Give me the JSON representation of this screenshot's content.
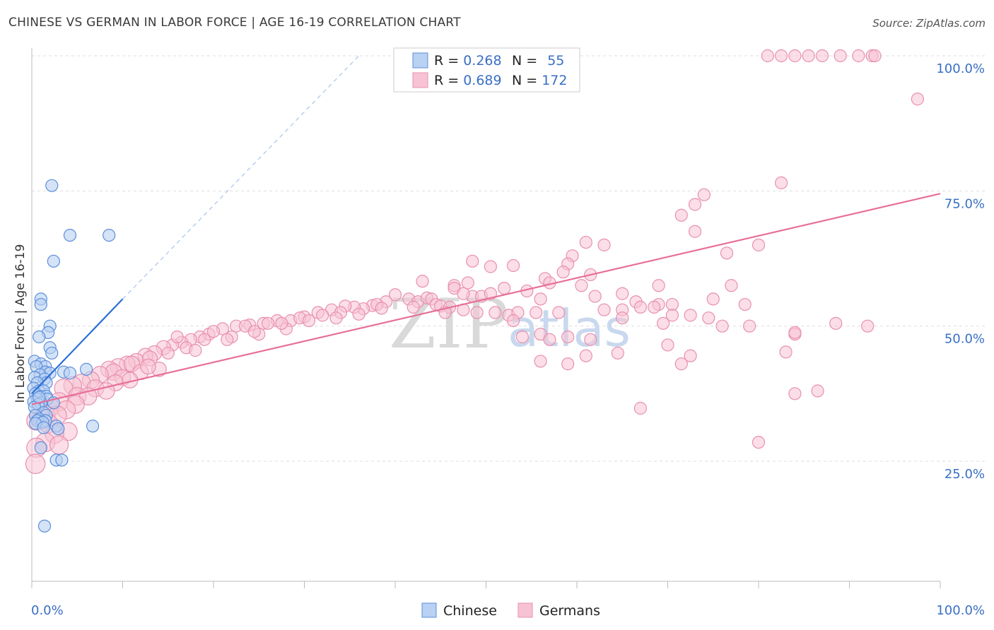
{
  "title": "CHINESE VS GERMAN IN LABOR FORCE | AGE 16-19 CORRELATION CHART",
  "source": "Source: ZipAtlas.com",
  "watermark": {
    "zip": "ZIP",
    "atlas": "atlas"
  },
  "colors": {
    "chinese_fill": "#b9d1f2",
    "chinese_stroke": "#5b8fdb",
    "chinese_line": "#2b6fd6",
    "german_fill": "#f7c3d4",
    "german_stroke": "#e890ae",
    "german_line": "#e86f98",
    "axis_text": "#3a6fc4",
    "grid": "#dddddd"
  },
  "legend": {
    "rows": [
      {
        "r_label": "R = ",
        "r_value": "0.268",
        "n_label": "N = ",
        "n_value": "55"
      },
      {
        "r_label": "R = ",
        "r_value": "0.689",
        "n_label": "N = ",
        "n_value": "172"
      }
    ]
  },
  "bottom_legend": [
    "Chinese",
    "Germans"
  ],
  "chart_data": {
    "type": "scatter",
    "title": "CHINESE VS GERMAN IN LABOR FORCE | AGE 16-19 CORRELATION CHART",
    "xlabel": "",
    "ylabel": "In Labor Force | Age 16-19",
    "xlim": [
      0,
      100
    ],
    "ylim": [
      0,
      102
    ],
    "x_tick_labels": [
      "0.0%",
      "100.0%"
    ],
    "y_ticks": [
      25,
      50,
      75,
      100
    ],
    "y_tick_labels": [
      "25.0%",
      "50.0%",
      "75.0%",
      "100.0%"
    ],
    "grid": true,
    "legend_position": "top-center",
    "series": [
      {
        "name": "Chinese",
        "R": 0.268,
        "N": 55,
        "trend": {
          "x": [
            0,
            10
          ],
          "y": [
            37.5,
            55
          ],
          "dashed_to": [
            36,
            100
          ]
        },
        "points": [
          [
            2.2,
            76
          ],
          [
            4.2,
            66.8
          ],
          [
            8.5,
            66.8
          ],
          [
            2.4,
            62
          ],
          [
            1.0,
            55
          ],
          [
            1.0,
            54
          ],
          [
            2.0,
            50
          ],
          [
            1.8,
            48.8
          ],
          [
            0.8,
            48
          ],
          [
            2.0,
            46
          ],
          [
            2.2,
            45
          ],
          [
            0.3,
            43.5
          ],
          [
            1.0,
            43
          ],
          [
            1.5,
            42.5
          ],
          [
            0.5,
            42.5
          ],
          [
            6.0,
            42
          ],
          [
            3.5,
            41.5
          ],
          [
            4.2,
            41.3
          ],
          [
            1.5,
            41.5
          ],
          [
            2.0,
            41.3
          ],
          [
            0.9,
            41
          ],
          [
            0.3,
            40.5
          ],
          [
            1.4,
            40.2
          ],
          [
            1.6,
            39.5
          ],
          [
            0.6,
            39.5
          ],
          [
            0.2,
            38.5
          ],
          [
            0.8,
            38
          ],
          [
            1.3,
            38
          ],
          [
            0.4,
            37.5
          ],
          [
            1.0,
            37
          ],
          [
            1.6,
            37
          ],
          [
            1.7,
            36.5
          ],
          [
            0.6,
            36.5
          ],
          [
            0.2,
            36
          ],
          [
            1.0,
            35.8
          ],
          [
            2.4,
            35.8
          ],
          [
            0.7,
            35.5
          ],
          [
            0.3,
            35
          ],
          [
            1.3,
            34
          ],
          [
            0.4,
            33.5
          ],
          [
            1.6,
            33.5
          ],
          [
            0.8,
            32.8
          ],
          [
            1.5,
            32.5
          ],
          [
            0.6,
            32.5
          ],
          [
            1.2,
            32.2
          ],
          [
            0.4,
            32
          ],
          [
            2.7,
            31.5
          ],
          [
            6.7,
            31.5
          ],
          [
            1.3,
            31.2
          ],
          [
            2.9,
            31
          ],
          [
            1.0,
            27.5
          ],
          [
            2.7,
            25.2
          ],
          [
            3.3,
            25.2
          ],
          [
            1.4,
            13
          ],
          [
            0.8,
            36.8
          ]
        ]
      },
      {
        "name": "Germans",
        "R": 0.689,
        "N": 172,
        "trend": {
          "x": [
            0,
            100
          ],
          "y": [
            35.5,
            74.5
          ]
        },
        "points": [
          [
            81,
            100
          ],
          [
            82.5,
            100
          ],
          [
            84,
            100
          ],
          [
            85.5,
            100
          ],
          [
            87,
            100
          ],
          [
            89,
            100
          ],
          [
            91,
            100
          ],
          [
            92.5,
            100
          ],
          [
            92.8,
            100
          ],
          [
            97.5,
            92
          ],
          [
            82.5,
            76.5
          ],
          [
            74,
            74.3
          ],
          [
            73,
            72.5
          ],
          [
            71.5,
            70.5
          ],
          [
            73,
            67.5
          ],
          [
            80,
            65
          ],
          [
            76.5,
            63.5
          ],
          [
            61,
            65.5
          ],
          [
            63,
            65
          ],
          [
            59.5,
            63
          ],
          [
            59,
            61.5
          ],
          [
            48.5,
            62
          ],
          [
            50.5,
            61
          ],
          [
            53,
            61.2
          ],
          [
            58.5,
            60
          ],
          [
            56.5,
            58.8
          ],
          [
            61.5,
            59.5
          ],
          [
            57,
            58
          ],
          [
            46.5,
            57.5
          ],
          [
            48,
            58
          ],
          [
            43,
            58.3
          ],
          [
            69,
            57.5
          ],
          [
            77,
            57.5
          ],
          [
            48.5,
            55.5
          ],
          [
            46.5,
            57
          ],
          [
            47.5,
            56
          ],
          [
            49.5,
            55.5
          ],
          [
            50.5,
            56
          ],
          [
            52,
            57
          ],
          [
            54.5,
            56.5
          ],
          [
            56,
            55
          ],
          [
            60.5,
            57.5
          ],
          [
            62,
            55.5
          ],
          [
            65,
            56
          ],
          [
            66.5,
            54.5
          ],
          [
            69,
            54
          ],
          [
            70.5,
            54
          ],
          [
            75,
            55
          ],
          [
            78.5,
            54
          ],
          [
            40,
            55.8
          ],
          [
            41.5,
            55
          ],
          [
            42.5,
            54.5
          ],
          [
            43.5,
            55.2
          ],
          [
            44,
            55
          ],
          [
            44.5,
            54
          ],
          [
            45,
            53.7
          ],
          [
            46,
            53.5
          ],
          [
            47.5,
            53
          ],
          [
            49,
            52.5
          ],
          [
            51,
            52.5
          ],
          [
            52.5,
            52
          ],
          [
            53.5,
            52.5
          ],
          [
            55.5,
            52.5
          ],
          [
            58,
            52.5
          ],
          [
            63,
            53
          ],
          [
            65,
            53
          ],
          [
            67,
            53.5
          ],
          [
            68.5,
            53.5
          ],
          [
            70.5,
            52
          ],
          [
            72.5,
            52
          ],
          [
            74.5,
            51.5
          ],
          [
            76,
            50
          ],
          [
            79,
            50
          ],
          [
            65,
            51.5
          ],
          [
            69.5,
            50.5
          ],
          [
            61.5,
            47.5
          ],
          [
            64.5,
            45
          ],
          [
            39,
            54.5
          ],
          [
            37.5,
            53.8
          ],
          [
            36.5,
            53.2
          ],
          [
            38,
            54
          ],
          [
            35.5,
            53.5
          ],
          [
            34.5,
            53.7
          ],
          [
            33,
            53
          ],
          [
            31.5,
            52.5
          ],
          [
            30,
            51.7
          ],
          [
            28.5,
            51
          ],
          [
            27,
            51
          ],
          [
            25.5,
            50.5
          ],
          [
            24,
            50.2
          ],
          [
            22.5,
            50
          ],
          [
            21,
            49.5
          ],
          [
            19.5,
            48.5
          ],
          [
            18.5,
            48
          ],
          [
            17.5,
            47.5
          ],
          [
            16.5,
            47
          ],
          [
            15.5,
            46.5
          ],
          [
            14.5,
            46
          ],
          [
            13.5,
            45
          ],
          [
            12.5,
            44.5
          ],
          [
            11.5,
            43.5
          ],
          [
            10.5,
            43
          ],
          [
            9.5,
            42.5
          ],
          [
            8.5,
            42
          ],
          [
            16,
            48
          ],
          [
            20,
            49
          ],
          [
            23.5,
            50
          ],
          [
            26,
            50.5
          ],
          [
            29.5,
            51.5
          ],
          [
            32,
            52
          ],
          [
            34,
            52.5
          ],
          [
            28,
            49.5
          ],
          [
            25,
            48.5
          ],
          [
            22,
            48
          ],
          [
            19,
            47.5
          ],
          [
            17,
            46
          ],
          [
            15,
            45
          ],
          [
            13,
            44
          ],
          [
            11,
            43
          ],
          [
            9,
            41.5
          ],
          [
            7.5,
            41
          ],
          [
            6.5,
            40
          ],
          [
            5.5,
            39.5
          ],
          [
            4.5,
            39
          ],
          [
            3.5,
            38.5
          ],
          [
            10,
            40.5
          ],
          [
            12,
            41.5
          ],
          [
            14,
            42
          ],
          [
            7,
            38.5
          ],
          [
            5,
            37
          ],
          [
            3,
            36
          ],
          [
            2,
            35
          ],
          [
            1.5,
            33.5
          ],
          [
            1,
            33
          ],
          [
            0.5,
            32.5
          ],
          [
            9.2,
            39.5
          ],
          [
            8.2,
            38
          ],
          [
            6.2,
            37
          ],
          [
            4.8,
            35.5
          ],
          [
            3.8,
            34.5
          ],
          [
            2.8,
            33.5
          ],
          [
            1.8,
            32
          ],
          [
            4,
            30.5
          ],
          [
            2.5,
            30
          ],
          [
            1.5,
            28.5
          ],
          [
            3,
            28
          ],
          [
            0.5,
            27.5
          ],
          [
            0.4,
            24.5
          ],
          [
            10.8,
            40
          ],
          [
            12.8,
            42.5
          ],
          [
            18,
            45.5
          ],
          [
            21.5,
            47.5
          ],
          [
            24.5,
            49
          ],
          [
            27.5,
            50.5
          ],
          [
            30.5,
            51
          ],
          [
            33.5,
            51.5
          ],
          [
            36,
            52.2
          ],
          [
            38.5,
            53.3
          ],
          [
            42,
            53.5
          ],
          [
            45.5,
            52.5
          ],
          [
            53,
            51
          ],
          [
            56,
            48.5
          ],
          [
            54,
            48
          ],
          [
            57,
            47.5
          ],
          [
            59,
            48
          ],
          [
            61,
            44.5
          ],
          [
            70,
            46.5
          ],
          [
            71.5,
            43
          ],
          [
            72.5,
            44.5
          ],
          [
            83,
            45.2
          ],
          [
            84,
            48.5
          ],
          [
            84,
            48.8
          ],
          [
            88.5,
            50.5
          ],
          [
            92,
            50
          ],
          [
            86.5,
            38
          ],
          [
            84,
            37.5
          ],
          [
            80,
            28.5
          ],
          [
            67,
            34.8
          ],
          [
            56,
            43.5
          ],
          [
            59,
            43
          ]
        ]
      }
    ]
  }
}
